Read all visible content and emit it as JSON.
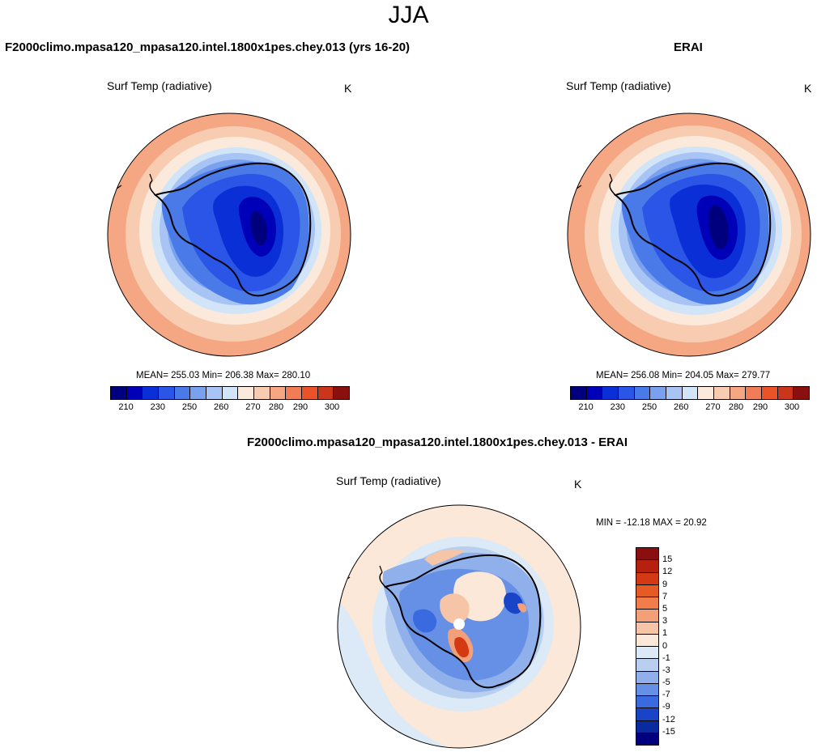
{
  "title": "JJA",
  "panels": {
    "model": {
      "title": "F2000climo.mpasa120_mpasa120.intel.1800x1pes.chey.013 (yrs 16-20)",
      "variable": "Surf Temp (radiative)",
      "units": "K",
      "stats": "MEAN= 255.03  Min= 206.38  Max= 280.10"
    },
    "obs": {
      "title": "ERAI",
      "variable": "Surf Temp (radiative)",
      "units": "K",
      "stats": "MEAN= 256.08  Min= 204.05  Max= 279.77"
    },
    "diff": {
      "title": "F2000climo.mpasa120_mpasa120.intel.1800x1pes.chey.013 - ERAI",
      "variable": "Surf Temp (radiative)",
      "units": "K",
      "stats": "MIN = -12.18 MAX =  20.92"
    }
  },
  "chart_data": [
    {
      "type": "heatmap",
      "projection": "south-polar-stereographic",
      "title": "F2000climo.mpasa120_mpasa120.intel.1800x1pes.chey.013 (yrs 16-20)",
      "variable": "Surf Temp (radiative)",
      "units": "K",
      "mean": 255.03,
      "min": 206.38,
      "max": 280.1,
      "colorbar_levels": [
        210,
        230,
        250,
        260,
        270,
        280,
        290,
        300
      ],
      "colorbar_colors": [
        "#00007f",
        "#0000b8",
        "#0a2fd6",
        "#2a55e6",
        "#4a7ae8",
        "#7aa1ee",
        "#a8c4f4",
        "#d2e4f8",
        "#fbe9dc",
        "#f7ccb1",
        "#f5a784",
        "#f07d55",
        "#ea5228",
        "#c9361b",
        "#8a1010"
      ]
    },
    {
      "type": "heatmap",
      "projection": "south-polar-stereographic",
      "title": "ERAI",
      "variable": "Surf Temp (radiative)",
      "units": "K",
      "mean": 256.08,
      "min": 204.05,
      "max": 279.77,
      "colorbar_levels": [
        210,
        230,
        250,
        260,
        270,
        280,
        290,
        300
      ],
      "colorbar_colors": [
        "#00007f",
        "#0000b8",
        "#0a2fd6",
        "#2a55e6",
        "#4a7ae8",
        "#7aa1ee",
        "#a8c4f4",
        "#d2e4f8",
        "#fbe9dc",
        "#f7ccb1",
        "#f5a784",
        "#f07d55",
        "#ea5228",
        "#c9361b",
        "#8a1010"
      ]
    },
    {
      "type": "heatmap",
      "projection": "south-polar-stereographic",
      "title": "F2000climo.mpasa120_mpasa120.intel.1800x1pes.chey.013 - ERAI",
      "variable": "Surf Temp (radiative)",
      "units": "K",
      "min": -12.18,
      "max": 20.92,
      "colorbar_levels": [
        15,
        12,
        9,
        7,
        5,
        3,
        1,
        0,
        -1,
        -3,
        -5,
        -7,
        -9,
        -12,
        -15
      ],
      "colorbar_colors": [
        "#8a1010",
        "#b5200f",
        "#d33a14",
        "#e65a24",
        "#f07d4a",
        "#f3a07a",
        "#f6c4a6",
        "#fbe8d8",
        "#dce9f6",
        "#b8cff0",
        "#8fb0ea",
        "#6590e6",
        "#3a6ae0",
        "#1a44c8",
        "#0a2aa0",
        "#00007f"
      ]
    }
  ]
}
